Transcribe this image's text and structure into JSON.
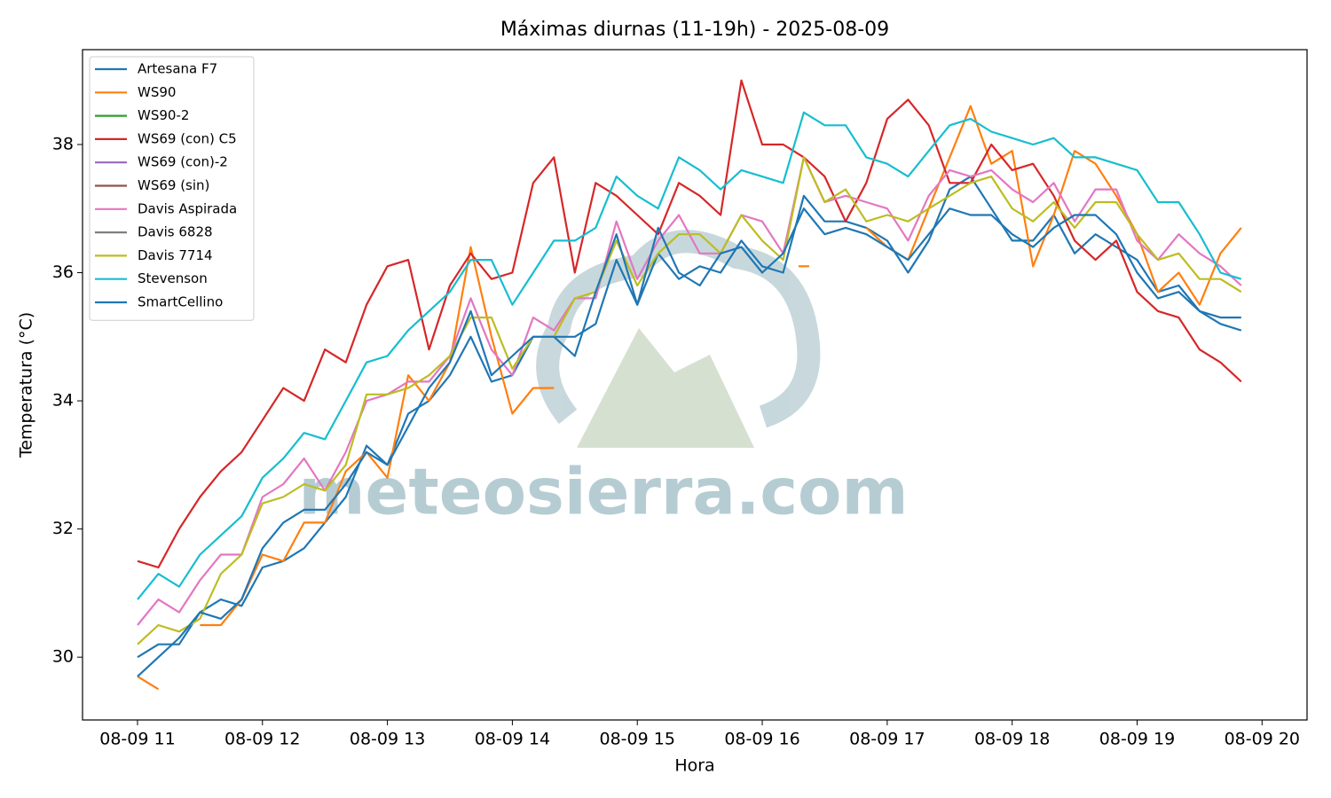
{
  "chart_data": {
    "type": "line",
    "title": "Máximas diurnas (11-19h) - 2025-08-09",
    "xlabel": "Hora",
    "ylabel": "Temperatura (°C)",
    "watermark": "meteosierra.com",
    "legend": "upper left",
    "grid": false,
    "xlim": [
      10.56,
      20.36
    ],
    "ylim": [
      29.02,
      39.48
    ],
    "xticks": [
      {
        "value": 11,
        "label": "08-09 11"
      },
      {
        "value": 12,
        "label": "08-09 12"
      },
      {
        "value": 13,
        "label": "08-09 13"
      },
      {
        "value": 14,
        "label": "08-09 14"
      },
      {
        "value": 15,
        "label": "08-09 15"
      },
      {
        "value": 16,
        "label": "08-09 16"
      },
      {
        "value": 17,
        "label": "08-09 17"
      },
      {
        "value": 18,
        "label": "08-09 18"
      },
      {
        "value": 19,
        "label": "08-09 19"
      },
      {
        "value": 20,
        "label": "08-09 20"
      }
    ],
    "yticks": [
      30,
      32,
      34,
      36,
      38
    ],
    "x": [
      11,
      11.167,
      11.333,
      11.5,
      11.667,
      11.833,
      12,
      12.167,
      12.333,
      12.5,
      12.667,
      12.833,
      13,
      13.167,
      13.333,
      13.5,
      13.667,
      13.833,
      14,
      14.167,
      14.333,
      14.5,
      14.667,
      14.833,
      15,
      15.167,
      15.333,
      15.5,
      15.667,
      15.833,
      16,
      16.167,
      16.333,
      16.5,
      16.667,
      16.833,
      17,
      17.167,
      17.333,
      17.5,
      17.667,
      17.833,
      18,
      18.167,
      18.333,
      18.5,
      18.667,
      18.833,
      19,
      19.167,
      19.333,
      19.5,
      19.667,
      19.833
    ],
    "series": [
      {
        "name": "Artesana F7",
        "color": "#1f77b4",
        "values": [
          30.0,
          30.2,
          30.2,
          30.7,
          30.9,
          30.8,
          31.4,
          31.5,
          31.7,
          32.1,
          32.5,
          33.3,
          33.0,
          33.8,
          34.0,
          34.4,
          35.0,
          34.3,
          34.4,
          35.0,
          35.0,
          35.0,
          35.2,
          36.2,
          35.5,
          36.3,
          35.9,
          36.1,
          36.0,
          36.5,
          36.1,
          36.0,
          37.2,
          36.8,
          36.8,
          36.7,
          36.5,
          36.0,
          36.5,
          37.3,
          37.5,
          37.0,
          36.5,
          36.5,
          36.9,
          36.3,
          36.6,
          36.4,
          36.2,
          35.7,
          35.8,
          35.4,
          35.3,
          35.3
        ]
      },
      {
        "name": "WS90",
        "color": "#ff7f0e",
        "values": [
          29.7,
          29.5,
          null,
          30.5,
          30.5,
          30.9,
          31.6,
          31.5,
          32.1,
          32.1,
          32.9,
          33.2,
          32.8,
          34.4,
          34.0,
          34.6,
          36.4,
          35.0,
          33.8,
          34.2,
          34.2,
          null,
          null,
          null,
          null,
          null,
          null,
          null,
          null,
          null,
          null,
          null,
          36.1,
          null,
          null,
          36.7,
          36.4,
          36.2,
          37.0,
          37.8,
          38.6,
          37.7,
          37.9,
          36.1,
          36.9,
          37.9,
          37.7,
          37.2,
          36.6,
          35.7,
          36.0,
          35.5,
          36.3,
          36.7
        ]
      },
      {
        "name": "WS90-2",
        "color": "#2ca02c",
        "values": [
          null,
          null,
          null,
          null,
          null,
          null,
          null,
          null,
          null,
          null,
          null,
          null,
          null,
          null,
          null,
          null,
          null,
          null,
          null,
          null,
          null,
          null,
          null,
          null,
          null,
          null,
          null,
          null,
          null,
          null,
          null,
          null,
          null,
          null,
          null,
          null,
          null,
          null,
          null,
          null,
          null,
          null,
          null,
          null,
          null,
          null,
          null,
          null,
          null,
          null,
          null,
          null,
          null,
          null
        ]
      },
      {
        "name": "WS69 (con) C5",
        "color": "#d62728",
        "values": [
          31.5,
          31.4,
          32.0,
          32.5,
          32.9,
          33.2,
          33.7,
          34.2,
          34.0,
          34.8,
          34.6,
          35.5,
          36.1,
          36.2,
          34.8,
          35.8,
          36.3,
          35.9,
          36.0,
          37.4,
          37.8,
          36.0,
          37.4,
          37.2,
          36.9,
          36.6,
          37.4,
          37.2,
          36.9,
          39.0,
          38.0,
          38.0,
          37.8,
          37.5,
          36.8,
          37.4,
          38.4,
          38.7,
          38.3,
          37.4,
          37.4,
          38.0,
          37.6,
          37.7,
          37.2,
          36.5,
          36.2,
          36.5,
          35.7,
          35.4,
          35.3,
          34.8,
          34.6,
          34.3
        ]
      },
      {
        "name": "WS69 (con)-2",
        "color": "#9467bd",
        "values": [
          null,
          null,
          null,
          null,
          null,
          null,
          null,
          null,
          null,
          null,
          null,
          null,
          null,
          null,
          null,
          null,
          null,
          null,
          null,
          null,
          null,
          null,
          null,
          null,
          null,
          null,
          null,
          null,
          null,
          null,
          null,
          null,
          null,
          null,
          null,
          null,
          null,
          null,
          null,
          null,
          null,
          null,
          null,
          null,
          null,
          null,
          null,
          null,
          null,
          null,
          null,
          null,
          null,
          null
        ]
      },
      {
        "name": "WS69 (sin)",
        "color": "#8c564b",
        "values": [
          null,
          null,
          null,
          null,
          null,
          null,
          null,
          null,
          null,
          null,
          null,
          null,
          null,
          null,
          null,
          null,
          null,
          null,
          null,
          null,
          null,
          null,
          null,
          null,
          null,
          null,
          null,
          null,
          null,
          null,
          null,
          null,
          null,
          null,
          null,
          null,
          null,
          null,
          null,
          null,
          null,
          null,
          null,
          null,
          null,
          null,
          null,
          null,
          null,
          null,
          null,
          null,
          null,
          null
        ]
      },
      {
        "name": "Davis Aspirada",
        "color": "#e377c2",
        "values": [
          30.5,
          30.9,
          30.7,
          31.2,
          31.6,
          31.6,
          32.5,
          32.7,
          33.1,
          32.6,
          33.2,
          34.0,
          34.1,
          34.3,
          34.3,
          34.7,
          35.6,
          34.8,
          34.4,
          35.3,
          35.1,
          35.6,
          35.6,
          36.8,
          35.9,
          36.5,
          36.9,
          36.3,
          36.3,
          36.9,
          36.8,
          36.3,
          37.8,
          37.1,
          37.2,
          37.1,
          37.0,
          36.5,
          37.2,
          37.6,
          37.5,
          37.6,
          37.3,
          37.1,
          37.4,
          36.8,
          37.3,
          37.3,
          36.5,
          36.2,
          36.6,
          36.3,
          36.1,
          35.8
        ]
      },
      {
        "name": "Davis 6828",
        "color": "#7f7f7f",
        "values": [
          null,
          null,
          null,
          null,
          null,
          null,
          null,
          null,
          null,
          null,
          null,
          null,
          null,
          null,
          null,
          null,
          null,
          null,
          null,
          null,
          null,
          null,
          null,
          null,
          null,
          null,
          null,
          null,
          null,
          null,
          null,
          null,
          null,
          null,
          null,
          null,
          null,
          null,
          null,
          null,
          null,
          null,
          null,
          null,
          null,
          null,
          null,
          null,
          null,
          null,
          null,
          null,
          null,
          null
        ]
      },
      {
        "name": "Davis 7714",
        "color": "#bcbd22",
        "values": [
          30.2,
          30.5,
          30.4,
          30.6,
          31.3,
          31.6,
          32.4,
          32.5,
          32.7,
          32.6,
          33.0,
          34.1,
          34.1,
          34.2,
          34.4,
          34.7,
          35.3,
          35.3,
          34.5,
          35.0,
          35.0,
          35.6,
          35.7,
          36.5,
          35.8,
          36.3,
          36.6,
          36.6,
          36.3,
          36.9,
          36.5,
          36.2,
          37.8,
          37.1,
          37.3,
          36.8,
          36.9,
          36.8,
          37.0,
          37.2,
          37.4,
          37.5,
          37.0,
          36.8,
          37.1,
          36.7,
          37.1,
          37.1,
          36.6,
          36.2,
          36.3,
          35.9,
          35.9,
          35.7
        ]
      },
      {
        "name": "Stevenson",
        "color": "#17becf",
        "values": [
          30.9,
          31.3,
          31.1,
          31.6,
          31.9,
          32.2,
          32.8,
          33.1,
          33.5,
          33.4,
          34.0,
          34.6,
          34.7,
          35.1,
          35.4,
          35.7,
          36.2,
          36.2,
          35.5,
          36.0,
          36.5,
          36.5,
          36.7,
          37.5,
          37.2,
          37.0,
          37.8,
          37.6,
          37.3,
          37.6,
          37.5,
          37.4,
          38.5,
          38.3,
          38.3,
          37.8,
          37.7,
          37.5,
          37.9,
          38.3,
          38.4,
          38.2,
          38.1,
          38.0,
          38.1,
          37.8,
          37.8,
          37.7,
          37.6,
          37.1,
          37.1,
          36.6,
          36.0,
          35.9
        ]
      },
      {
        "name": "SmartCellino",
        "color": "#1f77b4",
        "values": [
          29.7,
          30.0,
          30.3,
          30.7,
          30.6,
          30.9,
          31.7,
          32.1,
          32.3,
          32.3,
          32.7,
          33.2,
          33.0,
          33.6,
          34.2,
          34.6,
          35.4,
          34.4,
          34.7,
          35.0,
          35.0,
          34.7,
          35.7,
          36.6,
          35.5,
          36.7,
          36.0,
          35.8,
          36.3,
          36.4,
          36.0,
          36.3,
          37.0,
          36.6,
          36.7,
          36.6,
          36.4,
          36.2,
          36.6,
          37.0,
          36.9,
          36.9,
          36.6,
          36.4,
          36.7,
          36.9,
          36.9,
          36.6,
          36.0,
          35.6,
          35.7,
          35.4,
          35.2,
          35.1
        ]
      }
    ]
  }
}
